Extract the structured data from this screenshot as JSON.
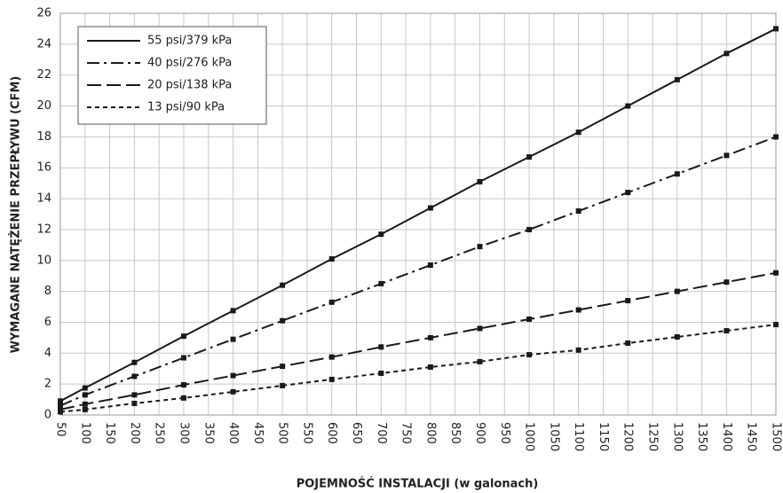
{
  "chart_data": {
    "type": "line",
    "xlabel": "POJEMNOŚĆ INSTALACJI (w galonach)",
    "ylabel": "WYMAGANE NATĘŻENIE PRZEPŁYWU (CFM)",
    "x": [
      50,
      100,
      200,
      300,
      400,
      500,
      600,
      700,
      800,
      900,
      1000,
      1100,
      1200,
      1300,
      1400,
      1500
    ],
    "series": [
      {
        "name": "55 psi/379 kPa",
        "color": "#1a1a1a",
        "dash": "solid",
        "values": [
          0.9,
          1.75,
          3.4,
          5.1,
          6.75,
          8.4,
          10.1,
          11.7,
          13.4,
          15.1,
          16.7,
          18.3,
          20.0,
          21.7,
          23.4,
          25.0
        ]
      },
      {
        "name": "40 psi/276 kPa",
        "color": "#1a1a1a",
        "dash": "dash-dot",
        "values": [
          0.6,
          1.3,
          2.5,
          3.7,
          4.9,
          6.1,
          7.3,
          8.5,
          9.7,
          10.9,
          12.0,
          13.2,
          14.4,
          15.6,
          16.8,
          18.0
        ]
      },
      {
        "name": "20 psi/138 kPa",
        "color": "#1a1a1a",
        "dash": "long-dash",
        "values": [
          0.35,
          0.7,
          1.3,
          1.95,
          2.55,
          3.15,
          3.75,
          4.4,
          5.0,
          5.6,
          6.2,
          6.8,
          7.4,
          8.0,
          8.6,
          9.2
        ]
      },
      {
        "name": "13 psi/90 kPa",
        "color": "#1a1a1a",
        "dash": "short-dash",
        "values": [
          0.2,
          0.35,
          0.75,
          1.1,
          1.5,
          1.9,
          2.3,
          2.7,
          3.1,
          3.45,
          3.9,
          4.2,
          4.65,
          5.05,
          5.45,
          5.85
        ]
      }
    ],
    "xlim": [
      50,
      1500
    ],
    "xticks": [
      50,
      100,
      150,
      200,
      250,
      300,
      350,
      400,
      450,
      500,
      550,
      600,
      650,
      700,
      750,
      800,
      850,
      900,
      950,
      1000,
      1050,
      1100,
      1150,
      1200,
      1250,
      1300,
      1350,
      1400,
      1450,
      1500
    ],
    "ylim": [
      0,
      26
    ],
    "yticks": [
      0,
      2,
      4,
      6,
      8,
      10,
      12,
      14,
      16,
      18,
      20,
      22,
      24,
      26
    ],
    "grid": true,
    "legend": "upper left"
  }
}
